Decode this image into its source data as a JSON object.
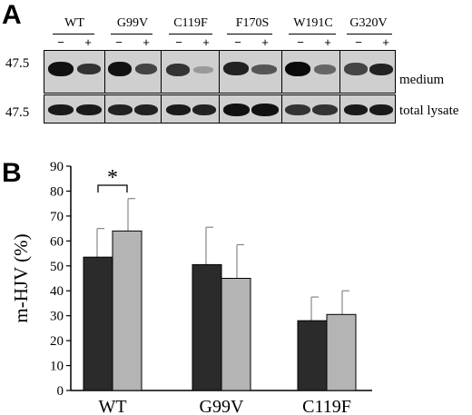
{
  "panel_a": {
    "letter": "A",
    "lanes": [
      "WT",
      "G99V",
      "C119F",
      "F170S",
      "W191C",
      "G320V"
    ],
    "treatment_minus": "−",
    "treatment_plus": "+",
    "mw_medium": "47.5",
    "mw_lysate": "47.5",
    "row_medium": "medium",
    "row_lysate": "total lysate"
  },
  "panel_b": {
    "letter": "B"
  },
  "chart_data": {
    "type": "bar",
    "categories": [
      "WT",
      "G99V",
      "C119F"
    ],
    "series": [
      {
        "values": [
          53.5,
          50.5,
          28
        ],
        "errors": [
          11.5,
          15,
          9.5
        ],
        "color": "#2b2b2b"
      },
      {
        "values": [
          64,
          45,
          30.5
        ],
        "errors": [
          13,
          13.5,
          9.5
        ],
        "color": "#b4b4b4"
      }
    ],
    "ylabel": "m-HJV (%)",
    "yticks": [
      0,
      10,
      20,
      30,
      40,
      50,
      60,
      70,
      80,
      90
    ],
    "ylim": [
      0,
      90
    ],
    "annotation": "*",
    "grid": false
  }
}
